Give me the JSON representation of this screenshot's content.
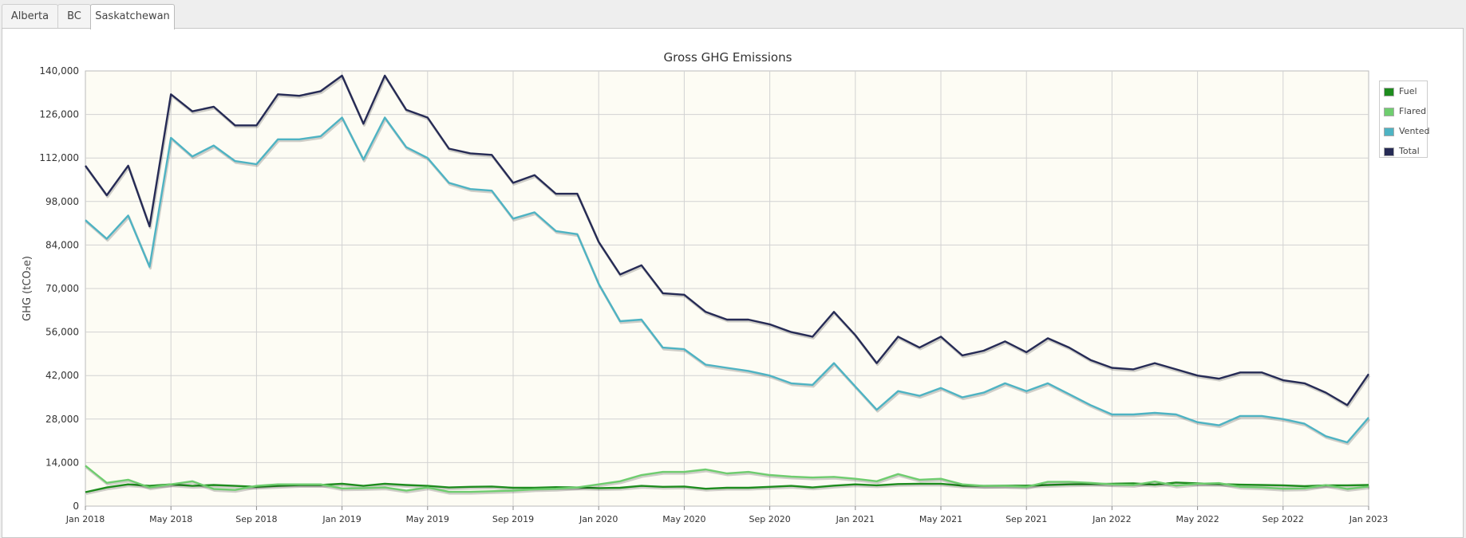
{
  "tabs": [
    {
      "label": "Alberta"
    },
    {
      "label": "BC"
    },
    {
      "label": "Saskatchewan"
    }
  ],
  "active_tab": "Saskatchewan",
  "chart_data": {
    "type": "line",
    "title": "Gross GHG Emissions",
    "xlabel": "",
    "ylabel": "GHG (tCO₂e)",
    "ylim": [
      0,
      140000
    ],
    "y_ticks": [
      "0",
      "14,000",
      "28,000",
      "42,000",
      "56,000",
      "70,000",
      "84,000",
      "98,000",
      "112,000",
      "126,000",
      "140,000"
    ],
    "x_ticks": [
      "Jan 2018",
      "May 2018",
      "Sep 2018",
      "Jan 2019",
      "May 2019",
      "Sep 2019",
      "Jan 2020",
      "May 2020",
      "Sep 2020",
      "Jan 2021",
      "May 2021",
      "Sep 2021",
      "Jan 2022",
      "May 2022",
      "Sep 2022",
      "Jan 2023"
    ],
    "x_start": "Jan 2018",
    "x_end": "Jan 2023",
    "x_interval": "monthly",
    "grid": true,
    "legend_position": "right",
    "series": [
      {
        "name": "Fuel",
        "color": "#1e8c1e",
        "values": [
          4500,
          6000,
          7000,
          6500,
          7000,
          6500,
          6800,
          6500,
          6200,
          6500,
          6800,
          6800,
          7200,
          6500,
          7200,
          6800,
          6500,
          6000,
          6200,
          6300,
          5900,
          5900,
          6100,
          6000,
          5800,
          5900,
          6500,
          6200,
          6300,
          5600,
          5900,
          5900,
          6200,
          6500,
          6000,
          6600,
          7000,
          6700,
          7100,
          7200,
          7200,
          6600,
          6500,
          6600,
          6600,
          6800,
          7000,
          7100,
          7200,
          7300,
          6900,
          7600,
          7300,
          7100,
          6900,
          6800,
          6700,
          6400,
          6700,
          6700,
          6800
        ]
      },
      {
        "name": "Flared",
        "color": "#6fcd6f",
        "values": [
          13000,
          7500,
          8500,
          6000,
          7000,
          8000,
          5500,
          5200,
          6500,
          7000,
          7000,
          7000,
          5700,
          5800,
          6000,
          5000,
          6000,
          4600,
          4600,
          4800,
          5000,
          5400,
          5600,
          6000,
          7000,
          8000,
          10000,
          11000,
          11000,
          11800,
          10500,
          11000,
          10000,
          9500,
          9200,
          9400,
          8800,
          8000,
          10300,
          8500,
          8800,
          7000,
          6500,
          6500,
          6200,
          7800,
          7800,
          7500,
          7000,
          6800,
          7900,
          6600,
          7200,
          7400,
          6200,
          6000,
          5600,
          5700,
          6800,
          5500,
          6300
        ]
      },
      {
        "name": "Vented",
        "color": "#4eb3c3",
        "values": [
          92000,
          86000,
          93500,
          77000,
          118500,
          112500,
          116000,
          111000,
          110000,
          118000,
          118000,
          119000,
          125000,
          111500,
          125000,
          115500,
          112000,
          104000,
          102000,
          101500,
          92500,
          94500,
          88500,
          87500,
          71500,
          59500,
          60000,
          51000,
          50500,
          45500,
          44500,
          43500,
          42000,
          39500,
          39000,
          46000,
          38500,
          31000,
          37000,
          35500,
          38000,
          35000,
          36500,
          39500,
          37000,
          39500,
          36000,
          32500,
          29500,
          29500,
          30000,
          29500,
          27000,
          26000,
          29000,
          29000,
          28000,
          26500,
          22500,
          20500,
          28500
        ]
      },
      {
        "name": "Total",
        "color": "#262b55",
        "values": [
          109500,
          100000,
          109500,
          90000,
          132500,
          127000,
          128500,
          122500,
          122500,
          132500,
          132000,
          133500,
          138500,
          123000,
          138500,
          127500,
          125000,
          115000,
          113500,
          113000,
          104000,
          106500,
          100500,
          100500,
          85000,
          74500,
          77500,
          68500,
          68000,
          62500,
          60000,
          60000,
          58500,
          56000,
          54500,
          62500,
          55000,
          46000,
          54500,
          51000,
          54500,
          48500,
          50000,
          53000,
          49500,
          54000,
          51000,
          47000,
          44500,
          44000,
          46000,
          44000,
          42000,
          41000,
          43000,
          43000,
          40500,
          39500,
          36500,
          32500,
          42500
        ]
      }
    ]
  }
}
